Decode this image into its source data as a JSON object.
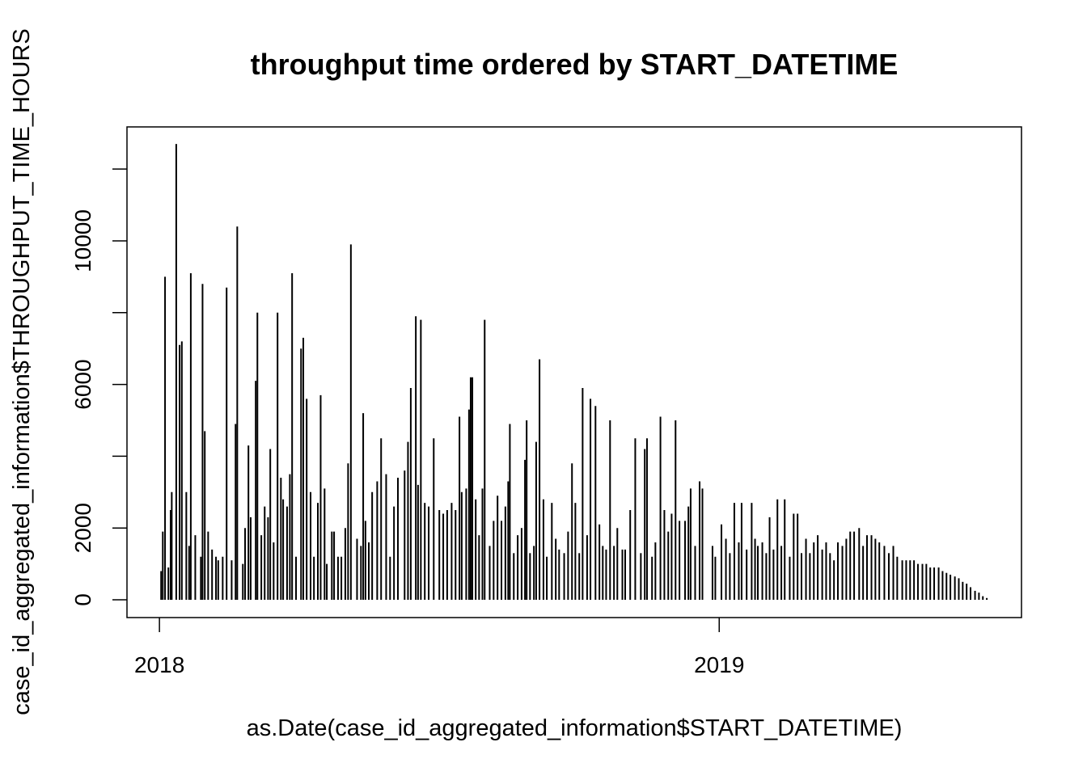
{
  "chart_data": {
    "type": "bar",
    "title": "throughput time ordered by START_DATETIME",
    "x_label": "as.Date(case_id_aggregated_information$START_DATETIME)",
    "y_label": "case_id_aggregated_information$THROUGHPUT_TIME_HOURS",
    "color": "#000000",
    "xlim": [
      2017.942,
      2019.54
    ],
    "xticks": [
      2018,
      2019
    ],
    "ylim": [
      -495,
      13175
    ],
    "yticks": [
      0,
      2000,
      {
        "value": 4000,
        "label": null
      },
      6000,
      {
        "value": 8000,
        "label": null
      },
      10000,
      {
        "value": 12000,
        "label": null
      }
    ],
    "x": [
      2018.003,
      2018.006,
      2018.01,
      2018.016,
      2018.02,
      2018.022,
      2018.03,
      2018.036,
      2018.04,
      2018.048,
      2018.053,
      2018.056,
      2018.064,
      2018.074,
      2018.077,
      2018.081,
      2018.087,
      2018.094,
      2018.101,
      2018.105,
      2018.113,
      2018.12,
      2018.129,
      2018.136,
      2018.139,
      2018.149,
      2018.153,
      2018.159,
      2018.163,
      2018.172,
      2018.175,
      2018.182,
      2018.188,
      2018.194,
      2018.198,
      2018.204,
      2018.211,
      2018.217,
      2018.221,
      2018.228,
      2018.233,
      2018.237,
      2018.244,
      2018.253,
      2018.257,
      2018.263,
      2018.27,
      2018.276,
      2018.283,
      2018.288,
      2018.295,
      2018.299,
      2018.308,
      2018.312,
      2018.319,
      2018.325,
      2018.332,
      2018.337,
      2018.342,
      2018.353,
      2018.36,
      2018.364,
      2018.368,
      2018.374,
      2018.38,
      2018.389,
      2018.396,
      2018.405,
      2018.412,
      2018.419,
      2018.426,
      2018.438,
      2018.444,
      2018.449,
      2018.458,
      2018.462,
      2018.467,
      2018.474,
      2018.481,
      2018.49,
      2018.5,
      2018.507,
      2018.514,
      2018.522,
      2018.529,
      2018.536,
      2018.54,
      2018.548,
      2018.553,
      2018.556,
      2018.559,
      2018.565,
      2018.571,
      2018.577,
      2018.581,
      2018.59,
      2018.597,
      2018.604,
      2018.611,
      2018.618,
      2018.623,
      2018.626,
      2018.633,
      2018.64,
      2018.647,
      2018.653,
      2018.656,
      2018.662,
      2018.669,
      2018.673,
      2018.679,
      2018.686,
      2018.692,
      2018.701,
      2018.708,
      2018.714,
      2018.723,
      2018.73,
      2018.737,
      2018.743,
      2018.75,
      2018.756,
      2018.764,
      2018.77,
      2018.779,
      2018.786,
      2018.792,
      2018.798,
      2018.805,
      2018.812,
      2018.818,
      2018.827,
      2018.832,
      2018.841,
      2018.85,
      2018.86,
      2018.867,
      2018.871,
      2018.88,
      2018.886,
      2018.895,
      2018.902,
      2018.909,
      2018.915,
      2018.922,
      2018.929,
      2018.939,
      2018.945,
      2018.949,
      2018.957,
      2018.965,
      2018.97,
      2018.988,
      2018.993,
      2019.004,
      2019.012,
      2019.019,
      2019.027,
      2019.035,
      2019.04,
      2019.049,
      2019.058,
      2019.064,
      2019.069,
      2019.077,
      2019.084,
      2019.09,
      2019.097,
      2019.104,
      2019.111,
      2019.117,
      2019.126,
      2019.133,
      2019.14,
      2019.147,
      2019.155,
      2019.162,
      2019.169,
      2019.176,
      2019.184,
      2019.191,
      2019.198,
      2019.205,
      2019.212,
      2019.22,
      2019.227,
      2019.234,
      2019.241,
      2019.25,
      2019.257,
      2019.264,
      2019.272,
      2019.279,
      2019.286,
      2019.295,
      2019.303,
      2019.311,
      2019.318,
      2019.327,
      2019.334,
      2019.341,
      2019.348,
      2019.355,
      2019.363,
      2019.37,
      2019.377,
      2019.384,
      2019.392,
      2019.399,
      2019.406,
      2019.413,
      2019.421,
      2019.428,
      2019.435,
      2019.442,
      2019.449,
      2019.457,
      2019.464,
      2019.471,
      2019.478
    ],
    "values": [
      800,
      1900,
      9000,
      900,
      2500,
      3000,
      12700,
      7100,
      7200,
      3000,
      1500,
      9100,
      1800,
      1200,
      8800,
      4700,
      1900,
      1400,
      1200,
      1100,
      1200,
      8700,
      1100,
      4900,
      10400,
      1000,
      2000,
      4300,
      2300,
      6100,
      8000,
      1800,
      2600,
      2300,
      4200,
      1600,
      8000,
      3400,
      2800,
      2600,
      3500,
      9100,
      1200,
      7000,
      7300,
      5600,
      3000,
      1200,
      2700,
      5700,
      3100,
      1000,
      1900,
      1900,
      1200,
      1200,
      2000,
      3800,
      9900,
      1700,
      1500,
      5200,
      2200,
      1600,
      3000,
      3300,
      4500,
      3500,
      1200,
      2600,
      3400,
      3600,
      4400,
      5900,
      7900,
      3200,
      7800,
      2700,
      2600,
      4500,
      2500,
      2400,
      2500,
      2700,
      2500,
      5100,
      3000,
      3100,
      5300,
      6200,
      6200,
      2800,
      1800,
      3100,
      7800,
      1500,
      2200,
      2900,
      2200,
      2600,
      3300,
      4900,
      1300,
      1800,
      2000,
      3900,
      5000,
      1300,
      1500,
      4400,
      6700,
      2800,
      1200,
      2700,
      1700,
      1400,
      1300,
      1900,
      3800,
      2700,
      1300,
      5900,
      1800,
      5600,
      5400,
      2100,
      1500,
      1400,
      5000,
      1500,
      2000,
      1400,
      1400,
      2500,
      4500,
      1300,
      4200,
      4500,
      1200,
      1600,
      5100,
      2500,
      1900,
      2400,
      5000,
      2200,
      2200,
      2600,
      3100,
      1500,
      3300,
      3100,
      1500,
      1200,
      2100,
      1700,
      1300,
      2700,
      1600,
      2700,
      1400,
      2700,
      1700,
      1500,
      1600,
      1300,
      2300,
      1400,
      2800,
      1500,
      2800,
      1200,
      2400,
      2400,
      1300,
      1700,
      1300,
      1600,
      1800,
      1400,
      1600,
      1300,
      1100,
      1600,
      1500,
      1700,
      1900,
      1900,
      2000,
      1500,
      1800,
      1800,
      1700,
      1600,
      1500,
      1300,
      1500,
      1200,
      1100,
      1100,
      1100,
      1100,
      1000,
      1000,
      1000,
      900,
      900,
      900,
      800,
      750,
      700,
      650,
      600,
      500,
      450,
      350,
      250,
      200,
      100,
      50
    ]
  }
}
